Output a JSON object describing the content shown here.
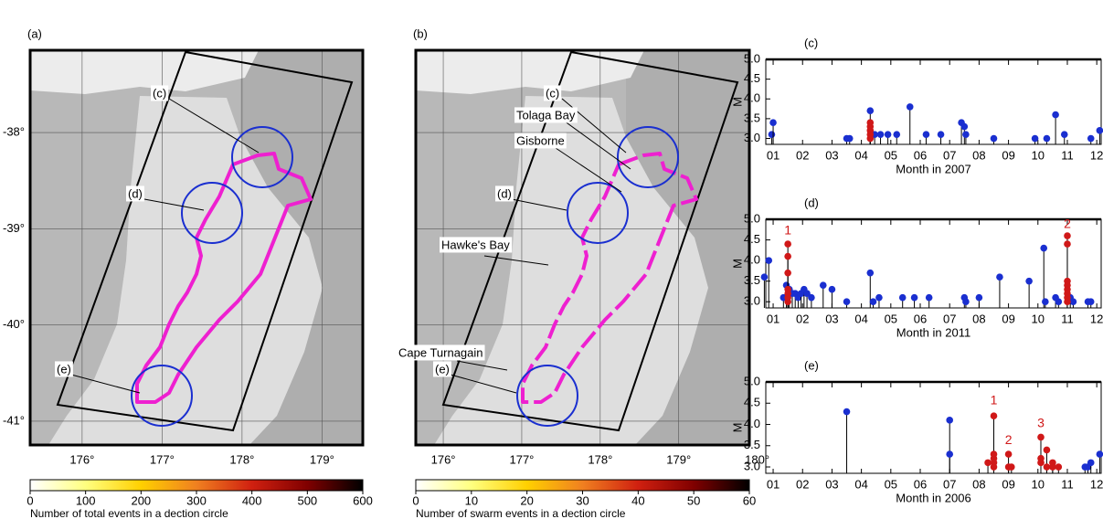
{
  "chart_data": [
    {
      "type": "map",
      "label": "(a)",
      "xlim": [
        175.35,
        179.51
      ],
      "ylim": [
        -41.247,
        -37.145
      ],
      "xticks": [
        {
          "value": 176,
          "label": "176°"
        },
        {
          "value": 177,
          "label": "177°"
        },
        {
          "value": 178,
          "label": "178°"
        },
        {
          "value": 179,
          "label": "179°"
        }
      ],
      "yticks": [
        {
          "value": -38,
          "label": "-38°"
        },
        {
          "value": -39,
          "label": "-39°"
        },
        {
          "value": -40,
          "label": "-40°"
        },
        {
          "value": -41,
          "label": "-41°"
        }
      ],
      "place_labels": [
        "(c)",
        "(d)",
        "(e)"
      ],
      "colorbar": {
        "lim": [
          0,
          600
        ],
        "ticks": [
          0,
          100,
          200,
          300,
          400,
          500,
          600
        ],
        "colors": [
          "#ffffff",
          "#ffff80",
          "#ffd000",
          "#f08020",
          "#d02010",
          "#800000",
          "#000000"
        ],
        "label": "Number of total events in a dection circle"
      }
    },
    {
      "type": "map",
      "label": "(b)",
      "xlim": [
        175.65,
        179.9
      ],
      "ylim": [
        -41.247,
        -37.145
      ],
      "xticks": [
        {
          "value": 176,
          "label": "176°"
        },
        {
          "value": 177,
          "label": "177°"
        },
        {
          "value": 178,
          "label": "178°"
        },
        {
          "value": 179,
          "label": "179°"
        },
        {
          "value": 180,
          "label": "180°"
        }
      ],
      "yticks": [
        -38,
        -39,
        -40,
        -41
      ],
      "place_labels": [
        "(c)",
        "(d)",
        "(e)",
        "Tolaga Bay",
        "Gisborne",
        "Hawke's Bay",
        "Cape Turnagain"
      ],
      "colorbar": {
        "lim": [
          0,
          60
        ],
        "ticks": [
          0,
          10,
          20,
          30,
          40,
          50,
          60
        ],
        "colors": [
          "#ffffff",
          "#ffff80",
          "#ffd000",
          "#f08020",
          "#d02010",
          "#800000",
          "#000000"
        ],
        "label": "Number of swarm events in a dection circle"
      }
    },
    {
      "type": "stem",
      "label": "(c)",
      "y_label": "M",
      "x_label": "Month in 2007",
      "xlim": [
        0.75,
        12.15
      ],
      "ylim": [
        2.85,
        5.0
      ],
      "xticks": [
        {
          "value": 1,
          "label": "01"
        },
        {
          "value": 2,
          "label": "02"
        },
        {
          "value": 3,
          "label": "03"
        },
        {
          "value": 4,
          "label": "04"
        },
        {
          "value": 5,
          "label": "05"
        },
        {
          "value": 6,
          "label": "06"
        },
        {
          "value": 7,
          "label": "07"
        },
        {
          "value": 8,
          "label": "08"
        },
        {
          "value": 9,
          "label": "09"
        },
        {
          "value": 10,
          "label": "10"
        },
        {
          "value": 11,
          "label": "11"
        },
        {
          "value": 12,
          "label": "12"
        }
      ],
      "yticks": [
        {
          "value": 3,
          "label": "3.0"
        },
        3.5,
        {
          "value": 4,
          "label": "4.0"
        },
        4.5,
        {
          "value": 5,
          "label": "5.0"
        }
      ],
      "series": [
        {
          "color": "#1a2fd0",
          "x": [
            0.95,
            1.0,
            3.5,
            3.6,
            4.3,
            4.45,
            4.65,
            4.9,
            5.2,
            5.65,
            6.2,
            6.7,
            7.4,
            7.5,
            7.55,
            8.5,
            9.9,
            10.3,
            10.6,
            10.9,
            11.8,
            12.1
          ],
          "values": [
            3.1,
            3.4,
            3.0,
            3.0,
            3.7,
            3.1,
            3.1,
            3.1,
            3.1,
            3.8,
            3.1,
            3.1,
            3.4,
            3.3,
            3.1,
            3.0,
            3.0,
            3.0,
            3.6,
            3.1,
            3.0,
            3.2
          ]
        },
        {
          "color": "#d01818",
          "x": [
            4.3,
            4.3,
            4.3,
            4.3,
            4.3
          ],
          "values": [
            3.4,
            3.3,
            3.2,
            3.1,
            3.0
          ]
        }
      ],
      "annotations": []
    },
    {
      "type": "stem",
      "label": "(d)",
      "y_label": "M",
      "x_label": "Month in 2011",
      "xlim": [
        0.75,
        12.15
      ],
      "ylim": [
        2.85,
        5.0
      ],
      "xticks": [
        {
          "value": 1,
          "label": "01"
        },
        {
          "value": 2,
          "label": "02"
        },
        {
          "value": 3,
          "label": "03"
        },
        {
          "value": 4,
          "label": "04"
        },
        {
          "value": 5,
          "label": "05"
        },
        {
          "value": 6,
          "label": "06"
        },
        {
          "value": 7,
          "label": "07"
        },
        {
          "value": 8,
          "label": "08"
        },
        {
          "value": 9,
          "label": "09"
        },
        {
          "value": 10,
          "label": "10"
        },
        {
          "value": 11,
          "label": "11"
        },
        {
          "value": 12,
          "label": "12"
        }
      ],
      "yticks": [
        {
          "value": 3,
          "label": "3.0"
        },
        3.5,
        {
          "value": 4,
          "label": "4.0"
        },
        4.5,
        {
          "value": 5,
          "label": "5.0"
        }
      ],
      "series": [
        {
          "color": "#1a2fd0",
          "x": [
            0.7,
            0.85,
            1.35,
            1.45,
            1.55,
            1.65,
            1.75,
            1.85,
            1.95,
            2.05,
            2.15,
            2.3,
            2.7,
            3.0,
            3.5,
            4.3,
            4.4,
            4.6,
            5.4,
            5.8,
            6.3,
            7.5,
            7.55,
            8.0,
            8.7,
            9.7,
            10.2,
            10.25,
            10.6,
            10.7,
            11.1,
            11.2,
            11.7,
            11.8
          ],
          "values": [
            3.6,
            4.0,
            3.1,
            3.4,
            3.3,
            3.2,
            3.2,
            3.1,
            3.2,
            3.3,
            3.2,
            3.1,
            3.4,
            3.3,
            3.0,
            3.7,
            3.0,
            3.1,
            3.1,
            3.1,
            3.1,
            3.1,
            3.0,
            3.1,
            3.6,
            3.5,
            4.3,
            3.0,
            3.1,
            3.0,
            3.1,
            3.0,
            3.0,
            3.0
          ]
        },
        {
          "color": "#d01818",
          "x": [
            1.5,
            1.5,
            1.5,
            1.5,
            1.5,
            1.5,
            1.5,
            11.0,
            11.0,
            11.0,
            11.0,
            11.0,
            11.0,
            11.0,
            11.0
          ],
          "values": [
            4.4,
            4.1,
            3.7,
            3.3,
            3.2,
            3.1,
            3.0,
            4.6,
            4.4,
            3.5,
            3.4,
            3.3,
            3.2,
            3.1,
            3.0
          ]
        }
      ],
      "annotations": [
        {
          "text": "1",
          "x": 1.5,
          "y": 4.72
        },
        {
          "text": "2",
          "x": 11.0,
          "y": 4.87
        }
      ]
    },
    {
      "type": "stem",
      "label": "(e)",
      "y_label": "M",
      "x_label": "Month in 2006",
      "xlim": [
        0.75,
        12.15
      ],
      "ylim": [
        2.85,
        5.0
      ],
      "xticks": [
        {
          "value": 1,
          "label": "01"
        },
        {
          "value": 2,
          "label": "02"
        },
        {
          "value": 3,
          "label": "03"
        },
        {
          "value": 4,
          "label": "04"
        },
        {
          "value": 5,
          "label": "05"
        },
        {
          "value": 6,
          "label": "06"
        },
        {
          "value": 7,
          "label": "07"
        },
        {
          "value": 8,
          "label": "08"
        },
        {
          "value": 9,
          "label": "09"
        },
        {
          "value": 10,
          "label": "10"
        },
        {
          "value": 11,
          "label": "11"
        },
        {
          "value": 12,
          "label": "12"
        }
      ],
      "yticks": [
        {
          "value": 3,
          "label": "3.0"
        },
        3.5,
        {
          "value": 4,
          "label": "4.0"
        },
        4.5,
        {
          "value": 5,
          "label": "5.0"
        }
      ],
      "series": [
        {
          "color": "#1a2fd0",
          "x": [
            3.5,
            7.0,
            7.0,
            11.6,
            11.7,
            11.8,
            12.1
          ],
          "values": [
            4.3,
            4.1,
            3.3,
            3.0,
            3.0,
            3.1,
            3.3
          ]
        },
        {
          "color": "#d01818",
          "x": [
            8.3,
            8.5,
            8.5,
            8.5,
            8.5,
            8.5,
            9.0,
            9.0,
            9.1,
            10.1,
            10.1,
            10.1,
            10.3,
            10.3,
            10.5,
            10.5,
            10.7
          ],
          "values": [
            3.1,
            4.2,
            3.3,
            3.2,
            3.1,
            3.0,
            3.3,
            3.0,
            3.0,
            3.7,
            3.2,
            3.1,
            3.4,
            3.0,
            3.1,
            3.0,
            3.0
          ]
        }
      ],
      "annotations": [
        {
          "text": "1",
          "x": 8.5,
          "y": 4.55
        },
        {
          "text": "2",
          "x": 9.0,
          "y": 3.62
        },
        {
          "text": "3",
          "x": 10.1,
          "y": 4.02
        }
      ]
    }
  ]
}
